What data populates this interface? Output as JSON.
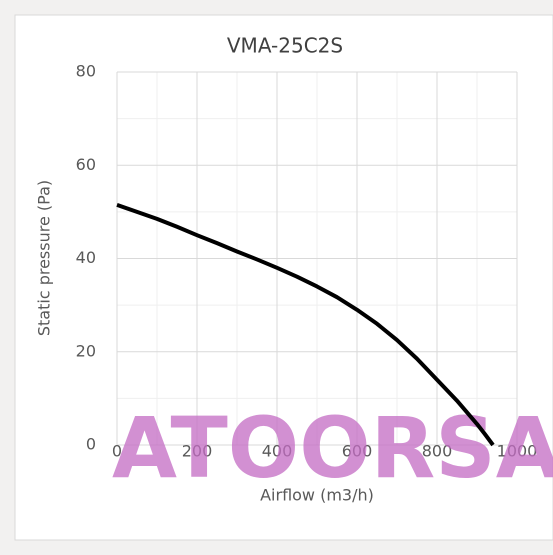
{
  "chart_data": {
    "type": "line",
    "title": "VMA-25C2S",
    "x_label": "Airflow (m3/h)",
    "y_label": "Static pressure (Pa)",
    "x": [
      0,
      50,
      100,
      150,
      200,
      250,
      300,
      350,
      400,
      450,
      500,
      550,
      600,
      650,
      700,
      750,
      800,
      850,
      900,
      920,
      940
    ],
    "series": [
      {
        "name": "VMA-25C2S",
        "color": "#000000",
        "values": [
          51.5,
          50,
          48.5,
          46.8,
          45,
          43.3,
          41.5,
          39.8,
          38,
          36.1,
          34,
          31.7,
          29,
          26,
          22.5,
          18.5,
          14,
          9.5,
          4.5,
          2.3,
          0
        ]
      }
    ],
    "xlim": [
      0,
      1000
    ],
    "xticks": [
      0,
      200,
      400,
      600,
      800,
      1000
    ],
    "ylim": [
      0,
      80
    ],
    "yticks": [
      0,
      20,
      40,
      60,
      80
    ],
    "grid": true,
    "minor_grid": true,
    "watermark": "ATOORSAN"
  }
}
